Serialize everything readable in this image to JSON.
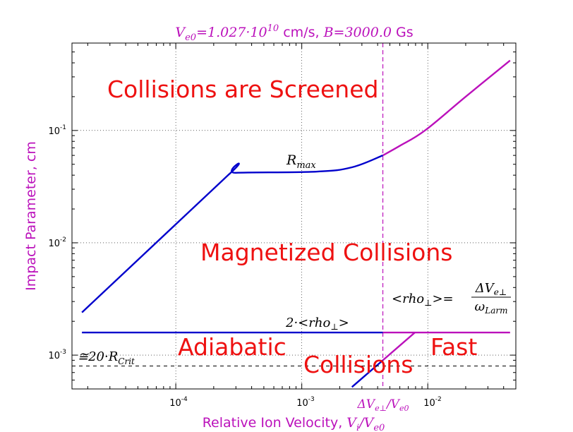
{
  "chart_data": {
    "type": "line",
    "title": "V_e0 = 1.027·10^10 cm/s, B = 3000.0 Gs",
    "title_parts": {
      "v_main": "V",
      "v_sub": "e0",
      "eq1": "=1.027",
      "dot": "·",
      "ten": "10",
      "ten_exp": "10",
      "unit1": " cm/s, ",
      "b": "B",
      "eq2": "=3000.0",
      "unit2": " Gs"
    },
    "xlabel": "Relative Ion Velocity, V_i/V_e0",
    "xlabel_parts": {
      "prefix": "Relative Ion Velocity, ",
      "v": "V",
      "v_sub": "i",
      "slash": "/",
      "v2": "V",
      "v2_sub": "e0"
    },
    "ylabel": "Impact Parameter, cm",
    "xscale": "log",
    "yscale": "log",
    "xlim": [
      1.5e-05,
      0.05
    ],
    "ylim": [
      0.0005,
      0.6
    ],
    "grid": true,
    "xticks": [
      {
        "value": 0.0001,
        "base": "10",
        "exp": "-4"
      },
      {
        "value": 0.001,
        "base": "10",
        "exp": "-3"
      },
      {
        "value": 0.01,
        "base": "10",
        "exp": "-2"
      }
    ],
    "yticks": [
      {
        "value": 0.001,
        "base": "10",
        "exp": "-3"
      },
      {
        "value": 0.01,
        "base": "10",
        "exp": "-2"
      },
      {
        "value": 0.1,
        "base": "10",
        "exp": "-1"
      }
    ],
    "vline": {
      "x": 0.0044,
      "color": "#bb11bb",
      "label": "ΔV_e⊥/V_e0",
      "label_parts": {
        "main": "ΔV",
        "sub": "e⊥",
        "slash": "/",
        "v2": "V",
        "v2_sub": "e0"
      }
    },
    "series": [
      {
        "color": "#0000cc",
        "points": [
          [
            1.8e-05,
            0.0024
          ],
          [
            0.00026,
            0.04
          ],
          [
            0.0003,
            0.042
          ],
          [
            0.0013,
            0.043
          ],
          [
            0.0025,
            0.047
          ],
          [
            0.0044,
            0.06
          ]
        ]
      },
      {
        "color": "#bb11bb",
        "points": [
          [
            0.0044,
            0.06
          ],
          [
            0.006,
            0.073
          ],
          [
            0.0095,
            0.1
          ],
          [
            0.02,
            0.2
          ],
          [
            0.045,
            0.42
          ]
        ]
      },
      {
        "color": "#0000cc",
        "points": [
          [
            1.8e-05,
            0.00159
          ],
          [
            0.0044,
            0.00159
          ]
        ]
      },
      {
        "color": "#bb11bb",
        "points": [
          [
            0.0044,
            0.00159
          ],
          [
            0.045,
            0.00159
          ]
        ]
      },
      {
        "color": "#0000cc",
        "points": [
          [
            0.0025,
            0.00052
          ],
          [
            0.0044,
            0.0009
          ]
        ]
      },
      {
        "color": "#bb11bb",
        "points": [
          [
            0.0044,
            0.0009
          ],
          [
            0.0079,
            0.00159
          ]
        ]
      },
      {
        "color": "#000000",
        "dashed": true,
        "points": [
          [
            1.5e-05,
            0.0008
          ],
          [
            0.05,
            0.0008
          ]
        ]
      }
    ],
    "annotations": [
      {
        "text": "Collisions are Screened",
        "x": 0.00015,
        "y": 0.22,
        "kind": "region"
      },
      {
        "text": "Magnetized Collisions",
        "x": 0.0026,
        "y": 0.0093,
        "kind": "region"
      },
      {
        "text": "Adiabatic",
        "x": 0.00016,
        "y": 0.00097,
        "kind": "region"
      },
      {
        "text": "Collisions",
        "x": 0.0019,
        "y": 0.0007,
        "kind": "region"
      },
      {
        "text": "Fast",
        "x": 0.0101,
        "y": 0.00097,
        "kind": "region"
      }
    ],
    "curve_labels": {
      "rmax": {
        "main": "R",
        "sub": "max"
      },
      "rho_two": {
        "pre": "2·<",
        "main": "rho",
        "sub": "⊥",
        "post": ">"
      },
      "rcrit": {
        "pre": "≅20·",
        "main": "R",
        "sub": "Crit"
      },
      "rho_def": {
        "lhs_pre": "<",
        "lhs_main": "rho",
        "lhs_sub": "⊥",
        "lhs_post": ">=",
        "num": "ΔV",
        "num_sub": "e⊥",
        "den": "ω",
        "den_sub": "Larm"
      }
    }
  }
}
